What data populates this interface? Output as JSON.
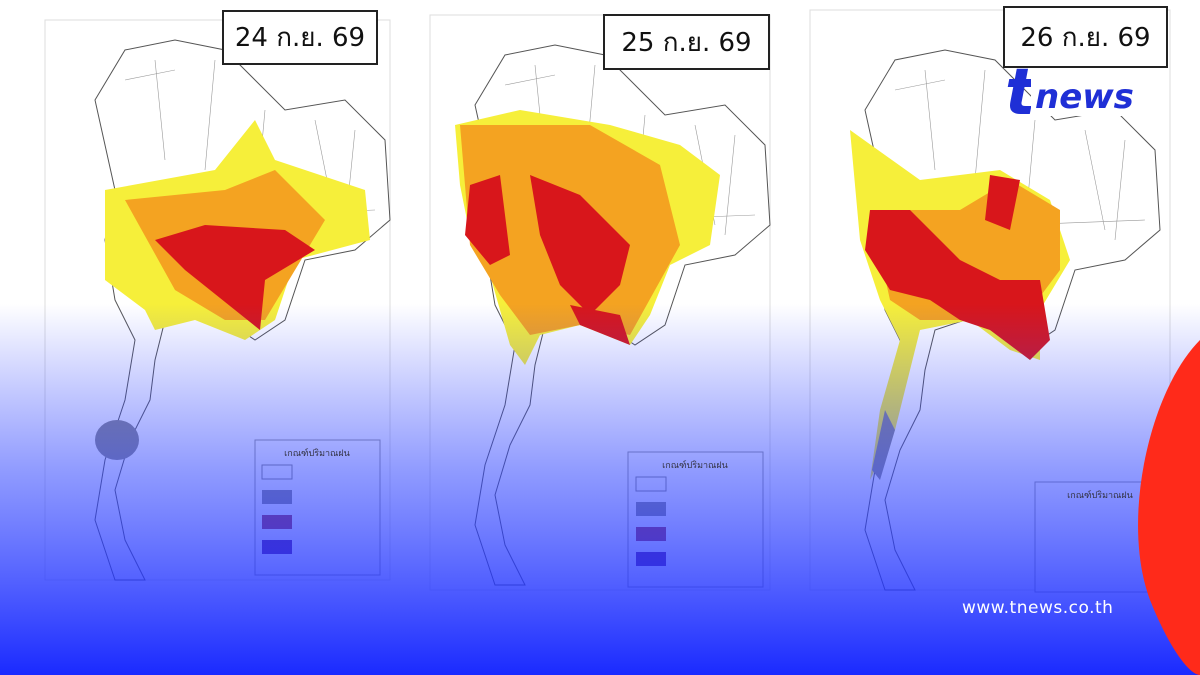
{
  "panels": [
    {
      "date": "24 ก.ย. 69",
      "legend_title": "เกณฑ์ปริมาณฝน"
    },
    {
      "date": "25 ก.ย. 69",
      "legend_title": "เกณฑ์ปริมาณฝน"
    },
    {
      "date": "26 ก.ย. 69",
      "legend_title": "เกณฑ์ปริมาณฝน"
    }
  ],
  "logo": {
    "mark": "t",
    "text": "news"
  },
  "website": "www.tnews.co.th"
}
